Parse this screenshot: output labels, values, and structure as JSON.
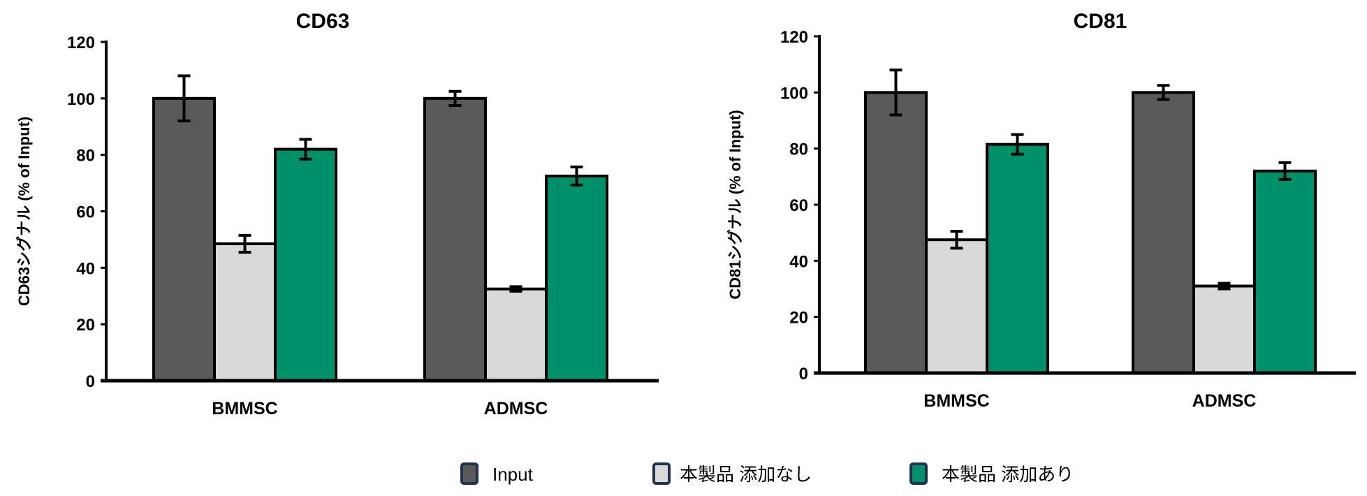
{
  "colors": {
    "Input": "#595959",
    "none": "#d9d9d9",
    "with": "#00906a",
    "legend_border": "#1f3350"
  },
  "legend": [
    "Input",
    "本製品 添加なし",
    "本製品 添加あり"
  ],
  "chart_data": [
    {
      "type": "bar",
      "title": "CD63",
      "ylabel": "CD63シグナル (% of Input)",
      "xlabel": "",
      "ylim": [
        0,
        120
      ],
      "yticks": [
        "0",
        "20",
        "40",
        "60",
        "80",
        "100",
        "120"
      ],
      "categories": [
        "BMMSC",
        "ADMSC"
      ],
      "grid": false,
      "legend_position": "bottom",
      "series": [
        {
          "name": "Input",
          "values": [
            100,
            100
          ],
          "errors": [
            8,
            2.5
          ]
        },
        {
          "name": "本製品 添加なし",
          "values": [
            48.5,
            32.5
          ],
          "errors": [
            3,
            0.8
          ]
        },
        {
          "name": "本製品 添加あり",
          "values": [
            82,
            72.5
          ],
          "errors": [
            3.5,
            3.2
          ]
        }
      ]
    },
    {
      "type": "bar",
      "title": "CD81",
      "ylabel": "CD81シグナル (% of Input)",
      "xlabel": "",
      "ylim": [
        0,
        120
      ],
      "yticks": [
        "0",
        "20",
        "40",
        "60",
        "80",
        "100",
        "120"
      ],
      "categories": [
        "BMMSC",
        "ADMSC"
      ],
      "grid": false,
      "legend_position": "bottom",
      "series": [
        {
          "name": "Input",
          "values": [
            100,
            100
          ],
          "errors": [
            8,
            2.5
          ]
        },
        {
          "name": "本製品 添加なし",
          "values": [
            47.5,
            31
          ],
          "errors": [
            3,
            1
          ]
        },
        {
          "name": "本製品 添加あり",
          "values": [
            81.5,
            72
          ],
          "errors": [
            3.5,
            3
          ]
        }
      ]
    }
  ]
}
